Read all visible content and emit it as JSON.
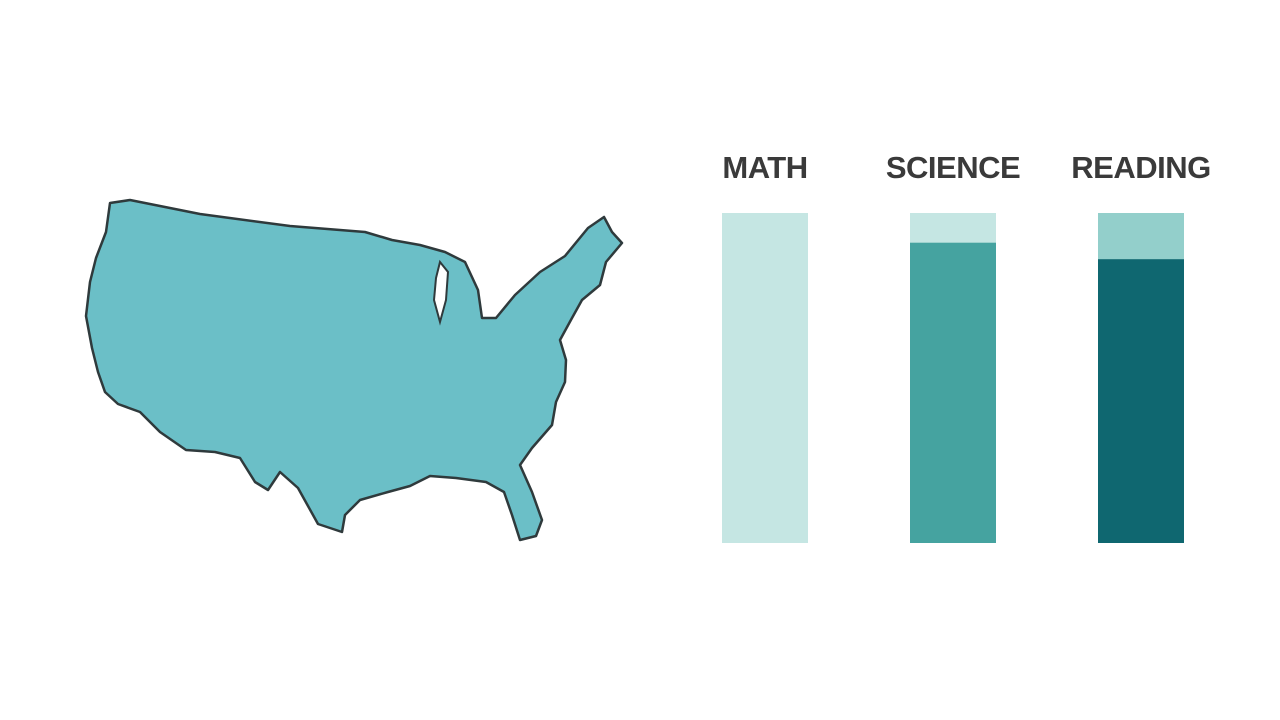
{
  "chart_data": {
    "type": "bar",
    "categories": [
      "MATH",
      "SCIENCE",
      "READING"
    ],
    "values": [
      100,
      91,
      86
    ],
    "colors": [
      "#c5e6e3",
      "#45a3a0",
      "#0f6770"
    ],
    "track_colors": [
      "#c5e6e3",
      "#c5e6e3",
      "#93cfcb"
    ],
    "ylim": [
      0,
      100
    ]
  }
}
